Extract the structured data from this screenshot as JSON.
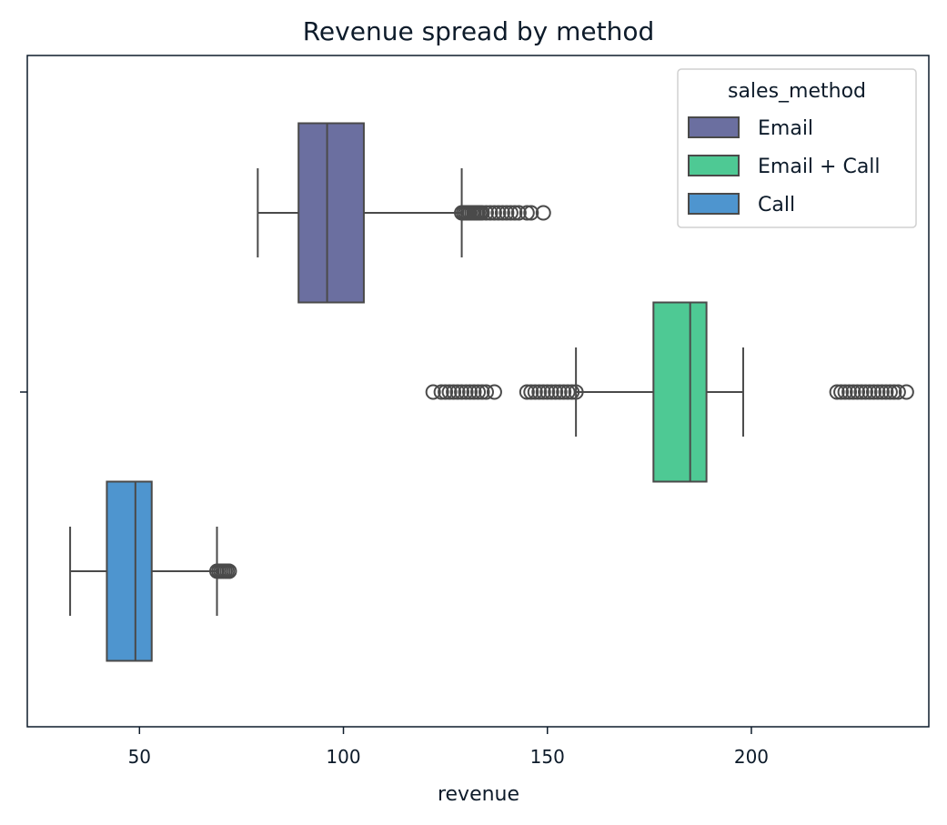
{
  "chart_data": {
    "type": "box",
    "orientation": "horizontal",
    "title": "Revenue spread by method",
    "xlabel": "revenue",
    "ylabel": "",
    "xlim": [
      22.5,
      243.5
    ],
    "x_ticks": [
      50,
      100,
      150,
      200
    ],
    "grid": false,
    "legend": {
      "title": "sales_method",
      "placement": "top-right",
      "entries": [
        "Email",
        "Email + Call",
        "Call"
      ]
    },
    "series": [
      {
        "name": "Email",
        "color": "#6b6fa0",
        "whisker_low": 79,
        "q1": 89,
        "median": 96,
        "q3": 105,
        "whisker_high": 129,
        "outliers": [
          129,
          129.5,
          130,
          130.5,
          131,
          131.5,
          132,
          132.5,
          133,
          133.5,
          134,
          135,
          136,
          137,
          138,
          139,
          140,
          141,
          142,
          143,
          145,
          146,
          149
        ]
      },
      {
        "name": "Email + Call",
        "color": "#4ec994",
        "whisker_low": 157,
        "q1": 176,
        "median": 185,
        "q3": 189,
        "whisker_high": 198,
        "outliers": [
          122,
          124,
          125,
          126,
          127,
          128,
          129,
          130,
          131,
          132,
          133,
          134,
          135,
          137,
          145,
          146,
          147,
          148,
          149,
          150,
          151,
          152,
          153,
          154,
          155,
          156,
          157,
          221,
          222,
          223,
          224,
          225,
          226,
          227,
          228,
          229,
          230,
          231,
          232,
          233,
          234,
          235,
          236,
          238
        ]
      },
      {
        "name": "Call",
        "color": "#4e95cf",
        "whisker_low": 33,
        "q1": 42,
        "median": 49,
        "q3": 53,
        "whisker_high": 69,
        "outliers": [
          69,
          69.5,
          70,
          70.5,
          71,
          71.5,
          72
        ]
      }
    ]
  }
}
